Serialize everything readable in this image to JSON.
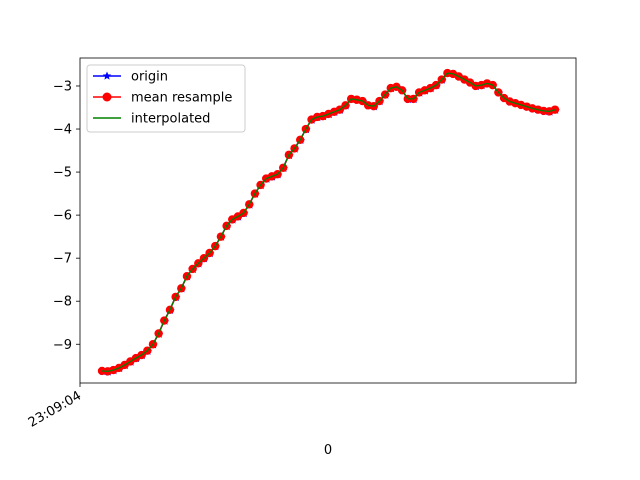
{
  "chart_data": {
    "type": "line",
    "title": "",
    "xlabel": "0",
    "ylabel": "",
    "x_tick_labels": [
      "23:09:04"
    ],
    "ylim": [
      -9.9,
      -2.35
    ],
    "y_ticks": [
      -9,
      -8,
      -7,
      -6,
      -5,
      -4,
      -3
    ],
    "grid": false,
    "legend_placement": "top-left",
    "series": [
      {
        "name": "origin",
        "color": "#0000ff",
        "marker": "star",
        "style": "line"
      },
      {
        "name": "mean resample",
        "color": "#ff0000",
        "marker": "circle",
        "style": "line"
      },
      {
        "name": "interpolated",
        "color": "#008000",
        "marker": "none",
        "style": "line"
      }
    ],
    "values": [
      -9.62,
      -9.63,
      -9.6,
      -9.55,
      -9.48,
      -9.4,
      -9.32,
      -9.25,
      -9.15,
      -9.0,
      -8.75,
      -8.45,
      -8.2,
      -7.9,
      -7.7,
      -7.42,
      -7.25,
      -7.12,
      -7.0,
      -6.88,
      -6.72,
      -6.5,
      -6.25,
      -6.1,
      -6.03,
      -5.95,
      -5.75,
      -5.5,
      -5.3,
      -5.15,
      -5.1,
      -5.05,
      -4.9,
      -4.6,
      -4.45,
      -4.25,
      -4.0,
      -3.78,
      -3.72,
      -3.7,
      -3.65,
      -3.6,
      -3.55,
      -3.45,
      -3.3,
      -3.32,
      -3.35,
      -3.45,
      -3.47,
      -3.35,
      -3.2,
      -3.05,
      -3.02,
      -3.1,
      -3.3,
      -3.3,
      -3.15,
      -3.1,
      -3.05,
      -2.98,
      -2.85,
      -2.7,
      -2.72,
      -2.78,
      -2.85,
      -2.92,
      -3.0,
      -2.98,
      -2.94,
      -2.98,
      -3.15,
      -3.28,
      -3.36,
      -3.4,
      -3.44,
      -3.48,
      -3.52,
      -3.55,
      -3.58,
      -3.59,
      -3.55
    ]
  }
}
